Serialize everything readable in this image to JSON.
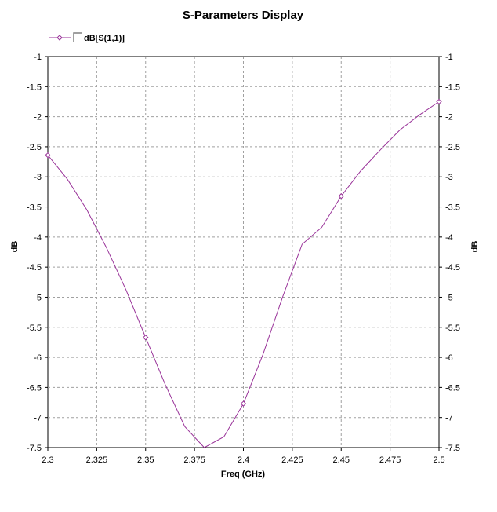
{
  "chart_data": {
    "type": "line",
    "title": "S-Parameters Display",
    "xlabel": "Freq (GHz)",
    "ylabel": "dB",
    "ylabel_right": "dB",
    "xlim": [
      2.3,
      2.5
    ],
    "ylim": [
      -7.5,
      -1
    ],
    "x_ticks": [
      "2.3",
      "2.325",
      "2.35",
      "2.375",
      "2.4",
      "2.425",
      "2.45",
      "2.475",
      "2.5"
    ],
    "y_ticks": [
      "-1",
      "-1.5",
      "-2",
      "-2.5",
      "-3",
      "-3.5",
      "-4",
      "-4.5",
      "-5",
      "-5.5",
      "-6",
      "-6.5",
      "-7",
      "-7.5"
    ],
    "grid": true,
    "legend_position": "top-left",
    "series": [
      {
        "name": "dB[S(1,1)]",
        "color": "#993399",
        "marker": "diamond",
        "x": [
          2.3,
          2.31,
          2.32,
          2.33,
          2.34,
          2.35,
          2.36,
          2.37,
          2.38,
          2.39,
          2.4,
          2.41,
          2.42,
          2.43,
          2.44,
          2.45,
          2.46,
          2.47,
          2.48,
          2.49,
          2.5
        ],
        "y": [
          -2.64,
          -3.04,
          -3.55,
          -4.18,
          -4.88,
          -5.67,
          -6.45,
          -7.15,
          -7.5,
          -7.32,
          -6.77,
          -5.95,
          -5.0,
          -4.12,
          -3.84,
          -3.32,
          -2.9,
          -2.55,
          -2.22,
          -1.97,
          -1.75
        ],
        "marker_x": [
          2.3,
          2.35,
          2.4,
          2.45,
          2.5
        ]
      }
    ]
  }
}
